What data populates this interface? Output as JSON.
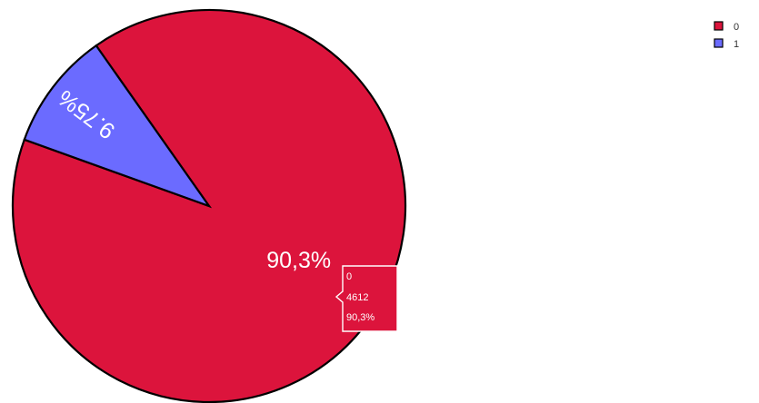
{
  "chart_data": {
    "type": "pie",
    "categories": [
      "0",
      "1"
    ],
    "values": [
      90.25,
      9.75
    ],
    "slice_labels": [
      "90,3%",
      "9.75%"
    ],
    "colors": [
      "#dc143c",
      "#6b6bff"
    ],
    "legend_placement": "top-right",
    "tooltip": {
      "category": "0",
      "count": "4612",
      "percent": "90,3%",
      "color": "#dc143c"
    }
  }
}
